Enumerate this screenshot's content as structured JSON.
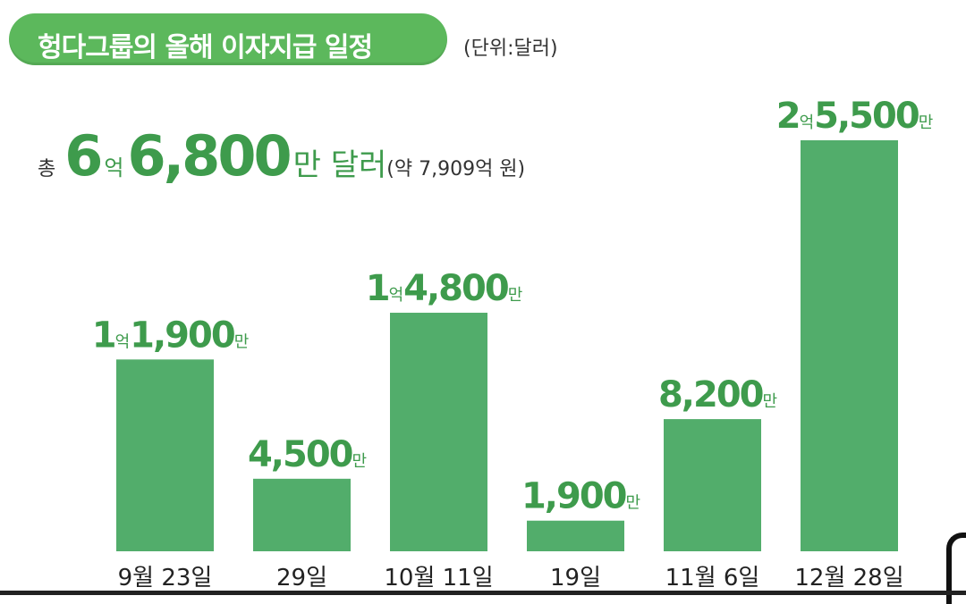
{
  "title": "헝다그룹의 올해 이자지급 일정",
  "unit_note": "(단위:달러)",
  "total": {
    "prefix": "총",
    "part1": "6",
    "part1_unit": "억",
    "part2": "6,800",
    "part2_unit": "만 달러",
    "note": "(약 7,909억 원)"
  },
  "colors": {
    "bar": "#52ad6b",
    "label": "#3e9b4c",
    "title_bg": "#5cb85c"
  },
  "chart_data": {
    "type": "bar",
    "title": "헝다그룹의 올해 이자지급 일정",
    "unit": "달러",
    "categories": [
      "9월 23일",
      "29일",
      "10월 11일",
      "19일",
      "11월 6일",
      "12월 28일"
    ],
    "values": [
      119000000,
      45000000,
      148000000,
      19000000,
      82000000,
      255000000
    ],
    "labels": [
      {
        "eok": "1",
        "man": "1,900"
      },
      {
        "eok": "",
        "man": "4,500"
      },
      {
        "eok": "1",
        "man": "4,800"
      },
      {
        "eok": "",
        "man": "1,900"
      },
      {
        "eok": "",
        "man": "8,200"
      },
      {
        "eok": "2",
        "man": "5,500"
      }
    ],
    "eok_unit": "억",
    "man_unit": "만",
    "ylim": [
      0,
      255000000
    ],
    "grid": false,
    "legend": "none"
  }
}
